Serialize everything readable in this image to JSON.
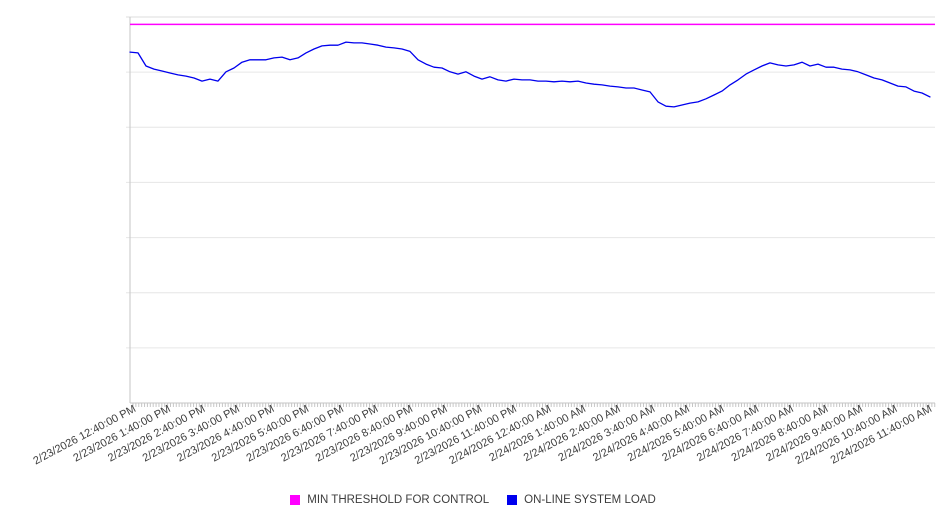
{
  "chart_data": {
    "type": "line",
    "title": "",
    "xlabel": "",
    "ylabel": "",
    "y_axis": {
      "tick_labels_visible": false,
      "scale": "percent-of-plot-height",
      "range": [
        0,
        100
      ],
      "gridline_count": 8
    },
    "x_tick_labels": [
      "2/23/2026 12:40:00 PM",
      "2/23/2026 1:40:00 PM",
      "2/23/2026 2:40:00 PM",
      "2/23/2026 3:40:00 PM",
      "2/23/2026 4:40:00 PM",
      "2/23/2026 5:40:00 PM",
      "2/23/2026 6:40:00 PM",
      "2/23/2026 7:40:00 PM",
      "2/23/2026 8:40:00 PM",
      "2/23/2026 9:40:00 PM",
      "2/23/2026 10:40:00 PM",
      "2/23/2026 11:40:00 PM",
      "2/24/2026 12:40:00 AM",
      "2/24/2026 1:40:00 AM",
      "2/24/2026 2:40:00 AM",
      "2/24/2026 3:40:00 AM",
      "2/24/2026 4:40:00 AM",
      "2/24/2026 5:40:00 AM",
      "2/24/2026 6:40:00 AM",
      "2/24/2026 7:40:00 AM",
      "2/24/2026 8:40:00 AM",
      "2/24/2026 9:40:00 AM",
      "2/24/2026 10:40:00 AM",
      "2/24/2026 11:40:00 AM"
    ],
    "series": [
      {
        "name": "MIN THRESHOLD FOR CONTROL",
        "type": "constant-horizontal-line",
        "color": "#ff00ff",
        "value": 98.1
      },
      {
        "name": "ON-LINE SYSTEM LOAD",
        "type": "line",
        "color": "#0000ee",
        "values": [
          90.9,
          90.7,
          87.3,
          86.5,
          86.0,
          85.5,
          85.0,
          84.7,
          84.2,
          83.4,
          83.9,
          83.4,
          85.8,
          86.8,
          88.3,
          88.9,
          88.9,
          88.9,
          89.4,
          89.6,
          88.9,
          89.4,
          90.7,
          91.7,
          92.5,
          92.7,
          92.7,
          93.5,
          93.3,
          93.3,
          93.0,
          92.7,
          92.2,
          92.0,
          91.7,
          91.1,
          88.9,
          87.8,
          87.0,
          86.8,
          85.8,
          85.2,
          85.8,
          84.7,
          83.9,
          84.5,
          83.7,
          83.4,
          83.9,
          83.7,
          83.7,
          83.4,
          83.4,
          83.2,
          83.4,
          83.2,
          83.4,
          82.9,
          82.6,
          82.4,
          82.1,
          81.9,
          81.6,
          81.6,
          81.1,
          80.6,
          78.0,
          76.9,
          76.7,
          77.2,
          77.7,
          78.0,
          78.8,
          79.8,
          80.8,
          82.4,
          83.7,
          85.2,
          86.3,
          87.3,
          88.1,
          87.6,
          87.3,
          87.6,
          88.3,
          87.3,
          87.8,
          87.0,
          87.0,
          86.5,
          86.3,
          85.8,
          85.0,
          84.2,
          83.7,
          82.9,
          82.1,
          81.9,
          80.8,
          80.3,
          79.3
        ]
      }
    ],
    "legend_position": "bottom",
    "grid": true,
    "colors": {
      "gridline": "#e6e6e6",
      "axis": "#c6c6c6",
      "tick": "#c6c6c6",
      "label_text": "#3d3d3d",
      "background": "#ffffff"
    }
  },
  "legend": {
    "items": [
      {
        "label": "MIN THRESHOLD FOR CONTROL",
        "color": "#ff00ff"
      },
      {
        "label": "ON-LINE SYSTEM LOAD",
        "color": "#0000ee"
      }
    ]
  }
}
